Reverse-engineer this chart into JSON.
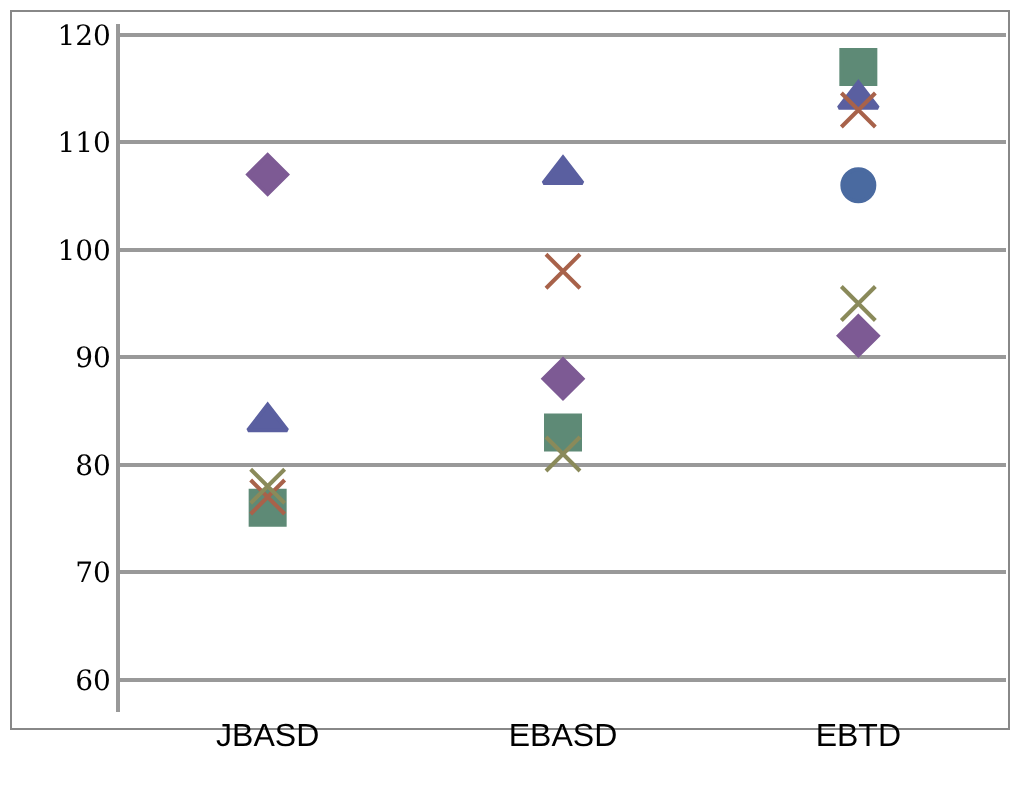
{
  "chart_data": {
    "type": "scatter",
    "categories": [
      "JBASD",
      "EBASD",
      "EBTD"
    ],
    "series": [
      {
        "color": "#4a6aa0",
        "marker": "circle",
        "values": [
          null,
          null,
          106
        ]
      },
      {
        "color": "#5e8a76",
        "marker": "square",
        "values": [
          76,
          83,
          117
        ]
      },
      {
        "color": "#5a5fa0",
        "marker": "triangle",
        "values": [
          84,
          107,
          114
        ]
      },
      {
        "color": "#7d5a94",
        "marker": "diamond",
        "values": [
          107,
          88,
          92
        ]
      },
      {
        "color": "#a8624a",
        "marker": "cross",
        "values": [
          77,
          98,
          113
        ]
      },
      {
        "color": "#8a8a5a",
        "marker": "cross",
        "values": [
          78,
          81,
          95
        ]
      }
    ],
    "ylim": [
      57,
      121
    ],
    "yticks": [
      60,
      70,
      80,
      90,
      100,
      110,
      120
    ],
    "grid": "y"
  }
}
